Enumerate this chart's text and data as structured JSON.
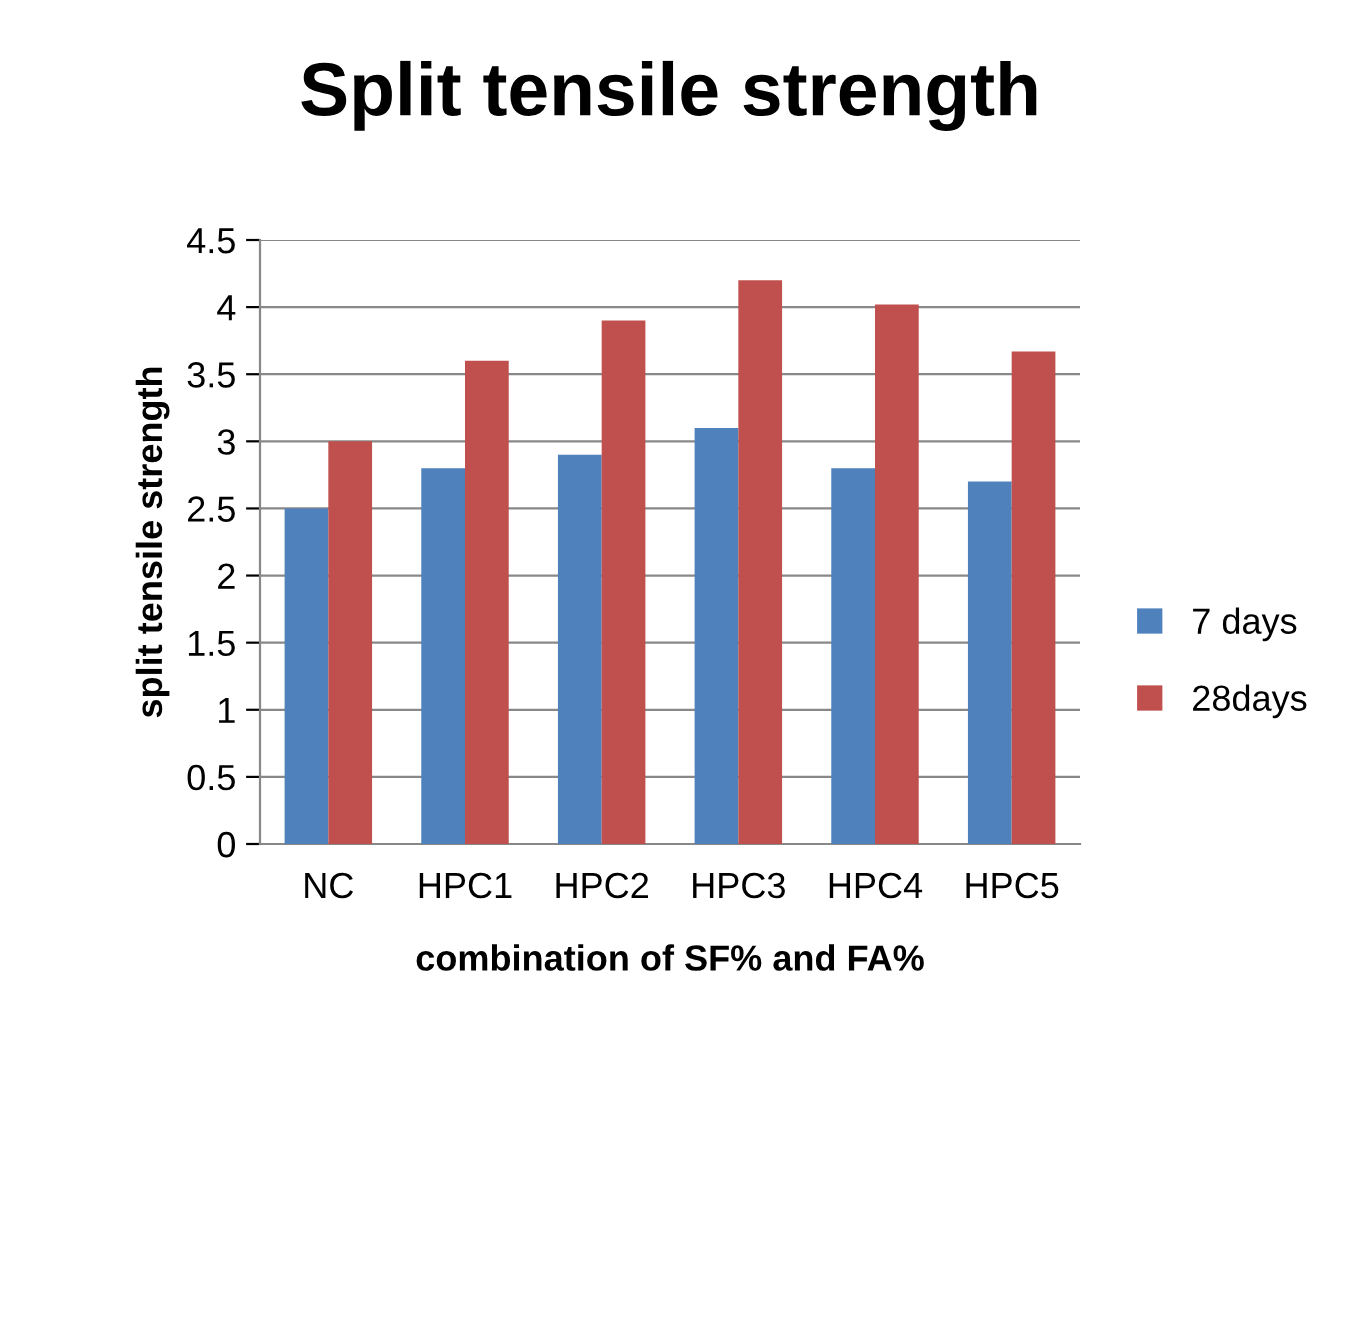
{
  "chart_data": {
    "type": "bar",
    "title": "Split tensile strength",
    "xlabel": "combination of SF% and FA%",
    "ylabel": "split tensile strength",
    "categories": [
      "NC",
      "HPC1",
      "HPC2",
      "HPC3",
      "HPC4",
      "HPC5"
    ],
    "series": [
      {
        "name": "7 days",
        "color": "#4f81bd",
        "values": [
          2.5,
          2.8,
          2.9,
          3.1,
          2.8,
          2.7
        ]
      },
      {
        "name": "28days",
        "color": "#c0504d",
        "values": [
          3.0,
          3.6,
          3.9,
          4.2,
          4.02,
          3.67
        ]
      }
    ],
    "ylim": [
      0,
      4.5
    ],
    "yticks": [
      0,
      0.5,
      1,
      1.5,
      2,
      2.5,
      3,
      3.5,
      4,
      4.5
    ],
    "grid": "y",
    "legend": "right"
  }
}
